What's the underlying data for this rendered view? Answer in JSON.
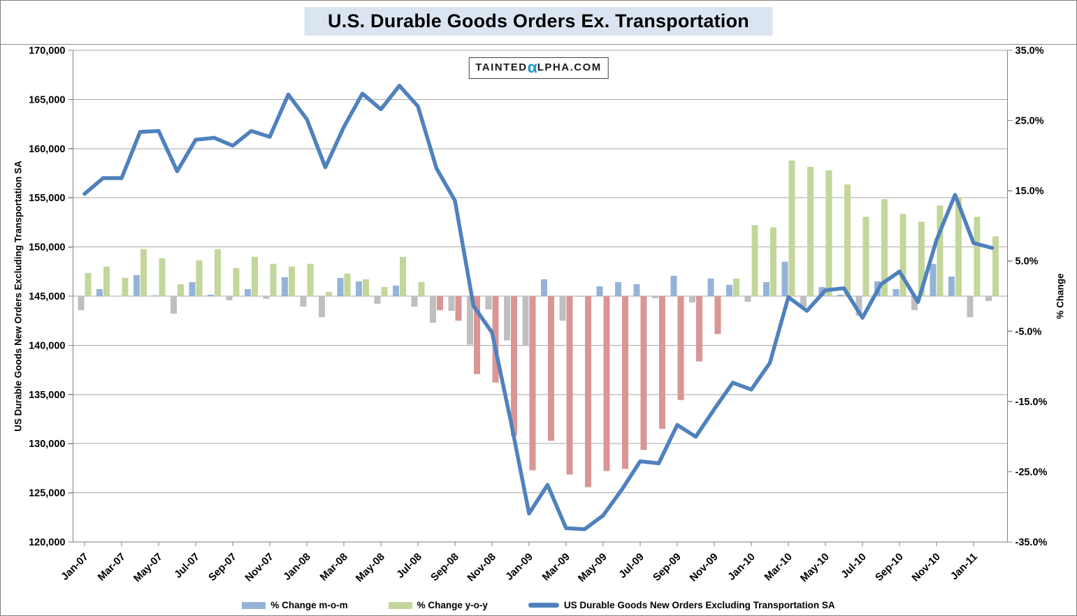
{
  "title": "U.S. Durable Goods Orders Ex. Transportation",
  "watermark": {
    "left": "Tainted",
    "alpha": "α",
    "right": "lpha.com"
  },
  "axes": {
    "left": {
      "title": "US Durable Goods New Orders Excluding Transportation SA",
      "ticks": [
        "170,000",
        "165,000",
        "160,000",
        "155,000",
        "150,000",
        "145,000",
        "140,000",
        "135,000",
        "130,000",
        "125,000",
        "120,000"
      ]
    },
    "right": {
      "title": "% Change",
      "ticks": [
        "35.0%",
        "25.0%",
        "15.0%",
        "5.0%",
        "-5.0%",
        "-15.0%",
        "-25.0%",
        "-35.0%"
      ]
    },
    "x": {
      "tick_labels": [
        "Jan-07",
        "Mar-07",
        "May-07",
        "Jul-07",
        "Sep-07",
        "Nov-07",
        "Jan-08",
        "Mar-08",
        "May-08",
        "Jul-08",
        "Sep-08",
        "Nov-08",
        "Jan-09",
        "Mar-09",
        "May-09",
        "Jul-09",
        "Sep-09",
        "Nov-09",
        "Jan-10",
        "Mar-10",
        "May-10",
        "Jul-10",
        "Sep-10",
        "Nov-10",
        "Jan-11"
      ],
      "tick_every": 2
    }
  },
  "legend": [
    {
      "label": "% Change m-o-m",
      "type": "bar",
      "color": "#95b3d7"
    },
    {
      "label": "% Change y-o-y",
      "type": "bar",
      "color": "#c3d69b"
    },
    {
      "label": "US Durable Goods New Orders Excluding Transportation SA",
      "type": "line",
      "color": "#4f81bd"
    }
  ],
  "colors": {
    "line": "#4f81bd",
    "mom_positive": "#95b3d7",
    "mom_negative": "#bfbfbf",
    "yoy_positive": "#c3d69b",
    "yoy_negative": "#d99694",
    "gridline": "#a6a6a6",
    "axis_line": "#808080",
    "title_background": "#dbe5f1",
    "watermark_alpha": "#2196d3"
  },
  "chart_data": {
    "type": "bar+line combo",
    "categories": [
      "Jan-07",
      "Feb-07",
      "Mar-07",
      "Apr-07",
      "May-07",
      "Jun-07",
      "Jul-07",
      "Aug-07",
      "Sep-07",
      "Oct-07",
      "Nov-07",
      "Dec-07",
      "Jan-08",
      "Feb-08",
      "Mar-08",
      "Apr-08",
      "May-08",
      "Jun-08",
      "Jul-08",
      "Aug-08",
      "Sep-08",
      "Oct-08",
      "Nov-08",
      "Dec-08",
      "Jan-09",
      "Feb-09",
      "Mar-09",
      "Apr-09",
      "May-09",
      "Jun-09",
      "Jul-09",
      "Aug-09",
      "Sep-09",
      "Oct-09",
      "Nov-09",
      "Dec-09",
      "Jan-10",
      "Feb-10",
      "Mar-10",
      "Apr-10",
      "May-10",
      "Jun-10",
      "Jul-10",
      "Aug-10",
      "Sep-10",
      "Oct-10",
      "Nov-10",
      "Dec-10",
      "Jan-11",
      "Feb-11"
    ],
    "left_axis_range": [
      120000,
      170000
    ],
    "right_axis_range": [
      -35,
      35
    ],
    "grid_step_left": 5000,
    "series": [
      {
        "name": "% Change m-o-m",
        "type": "bar",
        "axis": "right",
        "unit": "%",
        "values": [
          -2.0,
          1.0,
          0.0,
          3.0,
          0.1,
          -2.5,
          2.0,
          0.2,
          -0.6,
          1.0,
          -0.4,
          2.7,
          -1.5,
          -3.0,
          2.6,
          2.1,
          -1.1,
          1.5,
          -1.5,
          -3.8,
          -2.1,
          -6.9,
          -1.9,
          -6.3,
          -7.1,
          2.4,
          -3.5,
          -0.1,
          1.4,
          2.0,
          1.7,
          -0.3,
          2.9,
          -0.9,
          2.5,
          1.6,
          -0.8,
          2.0,
          4.9,
          -1.5,
          1.3,
          0.2,
          -2.8,
          2.1,
          1.0,
          -2.0,
          4.6,
          2.8,
          -3.0,
          -0.7
        ]
      },
      {
        "name": "% Change y-o-y",
        "type": "bar",
        "axis": "right",
        "unit": "%",
        "values": [
          3.3,
          4.2,
          2.6,
          6.7,
          5.4,
          1.7,
          5.1,
          6.7,
          4.0,
          5.6,
          4.6,
          4.2,
          4.6,
          0.6,
          3.2,
          2.4,
          1.3,
          5.6,
          2.0,
          -2.0,
          -3.5,
          -11.1,
          -12.3,
          -19.9,
          -24.8,
          -20.6,
          -25.4,
          -27.2,
          -24.9,
          -24.6,
          -21.9,
          -18.9,
          -14.8,
          -9.3,
          -5.4,
          2.5,
          10.1,
          9.8,
          19.3,
          18.4,
          17.9,
          15.9,
          11.3,
          13.8,
          11.7,
          10.6,
          12.9,
          14.1,
          11.3,
          8.5
        ]
      },
      {
        "name": "US Durable Goods New Orders Excluding Transportation SA",
        "type": "line",
        "axis": "left",
        "unit": "thousands",
        "values": [
          155400,
          157000,
          157000,
          161700,
          161800,
          157700,
          160900,
          161100,
          160300,
          161800,
          161200,
          165500,
          163000,
          158100,
          162200,
          165600,
          164000,
          166400,
          164300,
          158000,
          154700,
          144000,
          141300,
          132400,
          122900,
          125800,
          121400,
          121300,
          122700,
          125300,
          128200,
          128000,
          131900,
          130700,
          133500,
          136200,
          135500,
          138200,
          144900,
          143500,
          145600,
          145800,
          142800,
          146200,
          147500,
          144400,
          150700,
          155300,
          150400,
          149900
        ]
      }
    ]
  }
}
